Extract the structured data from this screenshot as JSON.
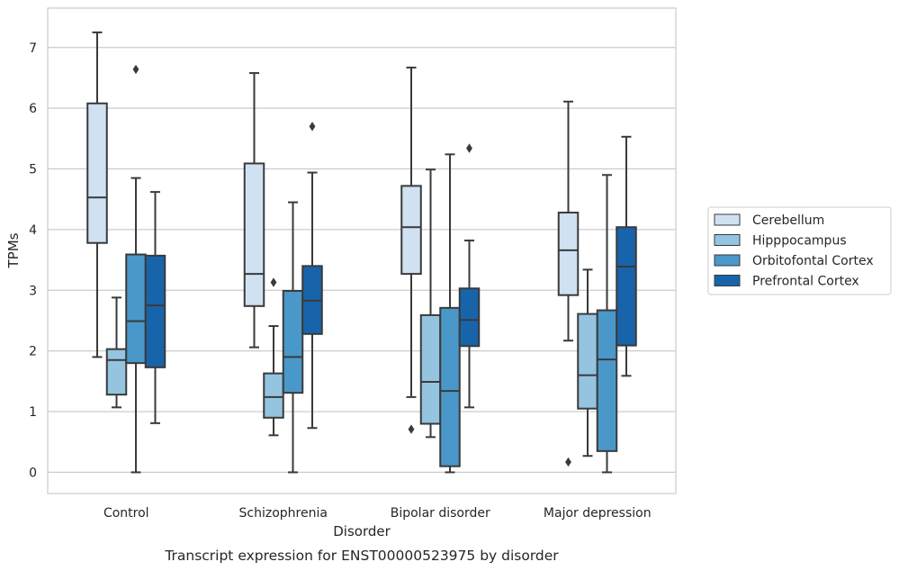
{
  "chart_data": {
    "type": "box",
    "title": "",
    "caption": "Transcript expression for ENST00000523975 by disorder",
    "xlabel": "Disorder",
    "ylabel": "TPMs",
    "ylim": [
      -0.35,
      7.65
    ],
    "yticks": [
      0,
      1,
      2,
      3,
      4,
      5,
      6,
      7
    ],
    "grid": "horizontal",
    "legend_position": "right",
    "categories": [
      "Control",
      "Schizophrenia",
      "Bipolar disorder",
      "Major depression"
    ],
    "series": [
      {
        "name": "Cerebellum",
        "color": "#d0e1f2",
        "boxes": [
          {
            "whislo": 1.9,
            "q1": 3.78,
            "med": 4.53,
            "q3": 6.08,
            "whishi": 7.25,
            "fliers": []
          },
          {
            "whislo": 2.06,
            "q1": 2.74,
            "med": 3.27,
            "q3": 5.09,
            "whishi": 6.58,
            "fliers": []
          },
          {
            "whislo": 1.24,
            "q1": 3.27,
            "med": 4.04,
            "q3": 4.72,
            "whishi": 6.67,
            "fliers": [
              0.71
            ]
          },
          {
            "whislo": 2.17,
            "q1": 2.92,
            "med": 3.66,
            "q3": 4.28,
            "whishi": 6.11,
            "fliers": [
              0.17
            ]
          }
        ]
      },
      {
        "name": "Hipppocampus",
        "color": "#94c4df",
        "boxes": [
          {
            "whislo": 1.07,
            "q1": 1.28,
            "med": 1.85,
            "q3": 2.03,
            "whishi": 2.88,
            "fliers": []
          },
          {
            "whislo": 0.61,
            "q1": 0.9,
            "med": 1.24,
            "q3": 1.63,
            "whishi": 2.41,
            "fliers": [
              3.13
            ]
          },
          {
            "whislo": 0.58,
            "q1": 0.8,
            "med": 1.49,
            "q3": 2.59,
            "whishi": 4.99,
            "fliers": []
          },
          {
            "whislo": 0.27,
            "q1": 1.05,
            "med": 1.6,
            "q3": 2.61,
            "whishi": 3.34,
            "fliers": []
          }
        ]
      },
      {
        "name": "Orbitofontal Cortex",
        "color": "#4a98c9",
        "boxes": [
          {
            "whislo": 0.0,
            "q1": 1.8,
            "med": 2.49,
            "q3": 3.59,
            "whishi": 4.85,
            "fliers": [
              6.64
            ]
          },
          {
            "whislo": 0.0,
            "q1": 1.31,
            "med": 1.9,
            "q3": 2.99,
            "whishi": 4.45,
            "fliers": []
          },
          {
            "whislo": 0.0,
            "q1": 0.1,
            "med": 1.34,
            "q3": 2.71,
            "whishi": 5.24,
            "fliers": []
          },
          {
            "whislo": 0.0,
            "q1": 0.35,
            "med": 1.86,
            "q3": 2.67,
            "whishi": 4.9,
            "fliers": []
          }
        ]
      },
      {
        "name": "Prefrontal Cortex",
        "color": "#1764ab",
        "boxes": [
          {
            "whislo": 0.81,
            "q1": 1.73,
            "med": 2.75,
            "q3": 3.57,
            "whishi": 4.62,
            "fliers": []
          },
          {
            "whislo": 0.73,
            "q1": 2.28,
            "med": 2.83,
            "q3": 3.4,
            "whishi": 4.94,
            "fliers": [
              5.7
            ]
          },
          {
            "whislo": 1.07,
            "q1": 2.08,
            "med": 2.51,
            "q3": 3.03,
            "whishi": 3.82,
            "fliers": [
              5.34
            ]
          },
          {
            "whislo": 1.59,
            "q1": 2.09,
            "med": 3.39,
            "q3": 4.04,
            "whishi": 5.53,
            "fliers": []
          }
        ]
      }
    ]
  }
}
